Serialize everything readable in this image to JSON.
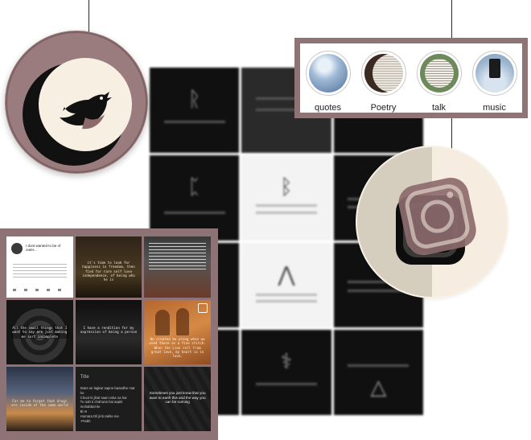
{
  "highlights": [
    {
      "label": "quotes"
    },
    {
      "label": "Poetry"
    },
    {
      "label": "talk"
    },
    {
      "label": "music"
    }
  ],
  "grid_posts": {
    "post_1_text": "I dont wanted to be of outer...",
    "post_2_text": "it's time to look for happiness in freedom, then find for rare self love independence, of being who he is",
    "post_4_text": "All the small things that I want to say are just making me sort incomplete",
    "post_5_text": "I have a rendition for my expression of being a person",
    "post_6_text": "We created be wrong when we used those as a fine stitch. When the Lion roll from great love, my heart is in love.",
    "post_7_text": "For me to forget that drugs are inside of the same world",
    "post_8_title": "Title",
    "post_8_text": "Stars se lagkar sapne baandhe mat ho\nChoot ki jihal saari raha na hai\nTu nah ti chahuna hai aapki mohabbat ke\nBi m\nHumara Dil jinti rakhe me\n-Prabh",
    "post_9_text": "Sometimes you just know that you want to earth this and the way you can be running"
  },
  "colors": {
    "panel_mauve": "#8f7476",
    "badge_cream": "#f6ede0",
    "icon_mauve": "#8c6a6c"
  },
  "icons": [
    "twitter-bird-icon",
    "instagram-icon"
  ]
}
